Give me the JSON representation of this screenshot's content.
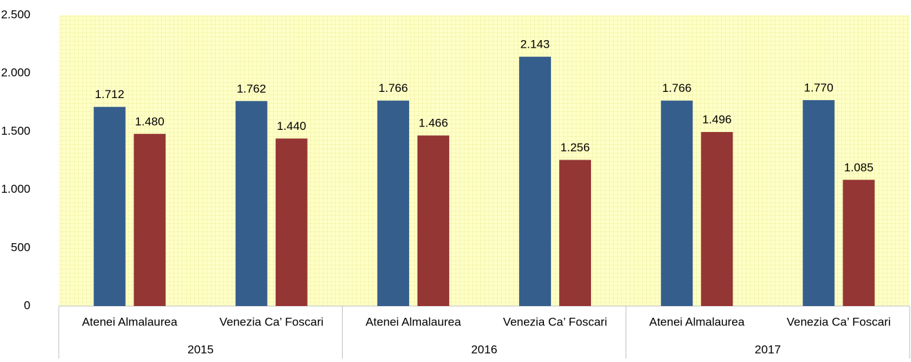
{
  "chart_data": {
    "type": "bar",
    "groups": [
      "2015",
      "2016",
      "2017"
    ],
    "categories": [
      "Atenei Almalaurea",
      "Venezia Ca’ Foscari",
      "Atenei Almalaurea",
      "Venezia Ca’ Foscari",
      "Atenei Almalaurea",
      "Venezia Ca’ Foscari"
    ],
    "series": [
      {
        "color": "#355e8d",
        "values": [
          1712,
          1762,
          1766,
          2143,
          1766,
          1770
        ],
        "value_labels": [
          "1.712",
          "1.762",
          "1.766",
          "2.143",
          "1.766",
          "1.770"
        ]
      },
      {
        "color": "#943634",
        "values": [
          1480,
          1440,
          1466,
          1256,
          1496,
          1085
        ],
        "value_labels": [
          "1.480",
          "1.440",
          "1.466",
          "1.256",
          "1.496",
          "1.085"
        ]
      }
    ],
    "ylim": [
      0,
      2500
    ],
    "yticks": [
      0,
      500,
      {
        "value": 1000,
        "label": "1.000"
      },
      {
        "value": 1500,
        "label": "1.500"
      },
      {
        "value": 2000,
        "label": "2.000"
      },
      {
        "value": 2500,
        "label": "2.500"
      }
    ],
    "grid": true
  }
}
